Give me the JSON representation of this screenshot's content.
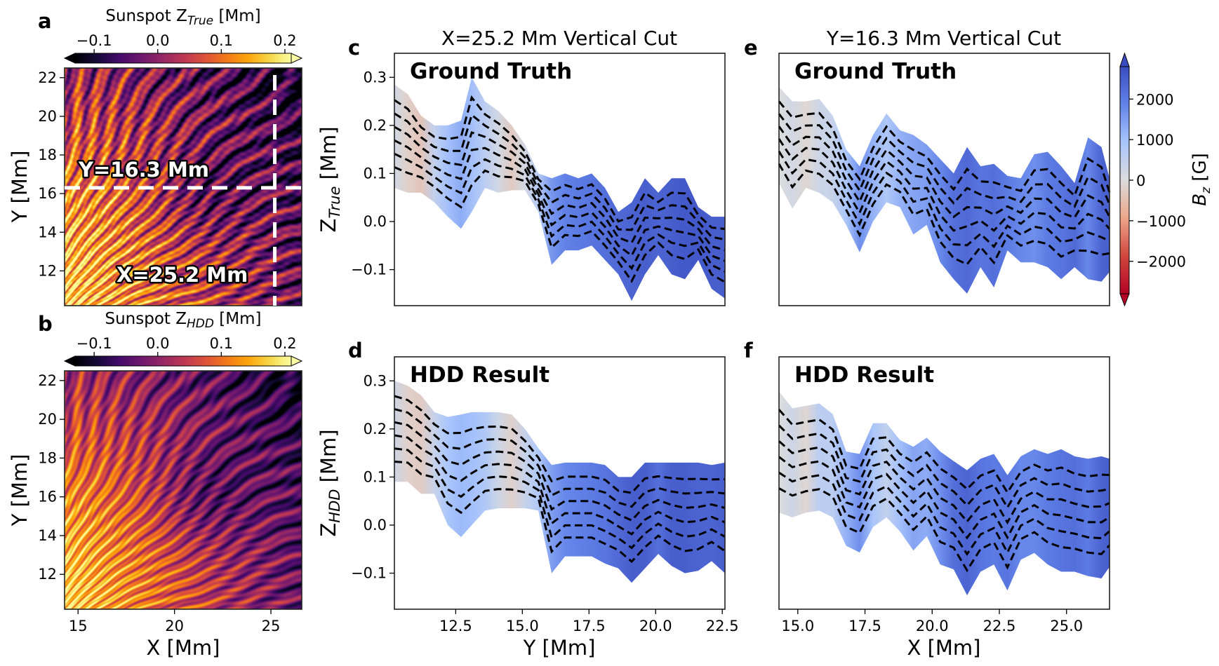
{
  "colors": {
    "dashed_cut": "#ffffff",
    "dashed_lines": "#000000",
    "frame": "#222222"
  },
  "chart_data": [
    {
      "panel": "a",
      "type": "heatmap",
      "colorbar": {
        "label_prefix": "Sunspot Z",
        "label_sub": "True",
        "label_suffix": " [Mm]",
        "colormap": "inferno",
        "range": [
          -0.13,
          0.21
        ],
        "ticks": [
          "−0.1",
          "0.0",
          "0.1",
          "0.2"
        ],
        "tick_values": [
          -0.1,
          0.0,
          0.1,
          0.2
        ],
        "extend": "both"
      },
      "xlim": [
        14.3,
        26.6
      ],
      "ylim": [
        10.2,
        22.5
      ],
      "ylabel": "Y [Mm]",
      "yticks": [
        "12",
        "14",
        "16",
        "18",
        "20",
        "22"
      ],
      "ytick_values": [
        12,
        14,
        16,
        18,
        20,
        22
      ],
      "annotations": [
        {
          "text": "Y=16.3 Mm",
          "cut": "horizontal",
          "value": 16.3
        },
        {
          "text": "X=25.2 Mm",
          "cut": "vertical",
          "value": 25.2
        }
      ]
    },
    {
      "panel": "b",
      "type": "heatmap",
      "colorbar": {
        "label_prefix": "Sunspot Z",
        "label_sub": "HDD",
        "label_suffix": " [Mm]",
        "colormap": "inferno",
        "range": [
          -0.13,
          0.21
        ],
        "ticks": [
          "−0.1",
          "0.0",
          "0.1",
          "0.2"
        ],
        "tick_values": [
          -0.1,
          0.0,
          0.1,
          0.2
        ],
        "extend": "both"
      },
      "xlim": [
        14.3,
        26.6
      ],
      "ylim": [
        10.2,
        22.5
      ],
      "xlabel": "X [Mm]",
      "ylabel": "Y [Mm]",
      "xticks": [
        "15",
        "20",
        "25"
      ],
      "xtick_values": [
        15,
        20,
        25
      ],
      "yticks": [
        "12",
        "14",
        "16",
        "18",
        "20",
        "22"
      ],
      "ytick_values": [
        12,
        14,
        16,
        18,
        20,
        22
      ]
    },
    {
      "panel": "c",
      "type": "area",
      "title": "X=25.2 Mm Vertical Cut",
      "inset": "Ground Truth",
      "ylabel_prefix": "Z",
      "ylabel_sub": "True",
      "ylabel_suffix": " [Mm]",
      "xlim": [
        10.2,
        22.6
      ],
      "ylim": [
        -0.175,
        0.35
      ],
      "yticks": [
        "−0.1",
        "0.0",
        "0.1",
        "0.2",
        "0.3"
      ],
      "ytick_values": [
        -0.1,
        0.0,
        0.1,
        0.2,
        0.3
      ],
      "x": [
        10.2,
        10.7,
        11.2,
        11.7,
        12.2,
        12.7,
        13.1,
        13.6,
        14.1,
        14.6,
        15.1,
        15.6,
        16.1,
        16.6,
        17.1,
        17.6,
        18.1,
        18.6,
        19.1,
        19.6,
        20.1,
        20.6,
        21.1,
        21.6,
        22.1,
        22.6
      ],
      "upper": [
        0.285,
        0.265,
        0.22,
        0.2,
        0.2,
        0.21,
        0.3,
        0.25,
        0.23,
        0.2,
        0.16,
        0.1,
        0.09,
        0.1,
        0.09,
        0.1,
        0.07,
        0.02,
        0.04,
        0.09,
        0.06,
        0.09,
        0.09,
        0.03,
        0.01,
        0.01
      ],
      "lower": [
        0.07,
        0.06,
        0.06,
        0.04,
        0.01,
        -0.015,
        0.02,
        0.07,
        0.06,
        0.065,
        0.065,
        0.02,
        -0.09,
        -0.06,
        -0.06,
        -0.05,
        -0.08,
        -0.11,
        -0.165,
        -0.11,
        -0.07,
        -0.11,
        -0.12,
        -0.08,
        -0.14,
        -0.16
      ],
      "bz": [
        200,
        -200,
        -400,
        500,
        1000,
        1300,
        1000,
        600,
        200,
        -300,
        200,
        700,
        1600,
        1900,
        2000,
        2100,
        2200,
        2300,
        2400,
        2500,
        2400,
        2500,
        2600,
        2600,
        2500,
        2500
      ]
    },
    {
      "panel": "d",
      "type": "area",
      "inset": "HDD Result",
      "ylabel_prefix": "Z",
      "ylabel_sub": "HDD",
      "ylabel_suffix": " [Mm]",
      "xlabel": "Y [Mm]",
      "xlim": [
        10.2,
        22.6
      ],
      "ylim": [
        -0.175,
        0.35
      ],
      "xticks": [
        "12.5",
        "15.0",
        "17.5",
        "20.0",
        "22.5"
      ],
      "xtick_values": [
        12.5,
        15.0,
        17.5,
        20.0,
        22.5
      ],
      "yticks": [
        "−0.1",
        "0.0",
        "0.1",
        "0.2",
        "0.3"
      ],
      "ytick_values": [
        -0.1,
        0.0,
        0.1,
        0.2,
        0.3
      ],
      "x": [
        10.2,
        10.7,
        11.2,
        11.7,
        12.2,
        12.7,
        13.1,
        13.6,
        14.1,
        14.6,
        15.1,
        15.6,
        16.1,
        16.6,
        17.1,
        17.6,
        18.1,
        18.6,
        19.1,
        19.6,
        20.1,
        20.6,
        21.1,
        21.6,
        22.1,
        22.6
      ],
      "upper": [
        0.3,
        0.29,
        0.27,
        0.235,
        0.225,
        0.23,
        0.235,
        0.235,
        0.235,
        0.23,
        0.2,
        0.16,
        0.125,
        0.13,
        0.13,
        0.13,
        0.125,
        0.1,
        0.1,
        0.13,
        0.13,
        0.13,
        0.13,
        0.13,
        0.125,
        0.13
      ],
      "lower": [
        0.09,
        0.09,
        0.065,
        0.065,
        0.0,
        -0.025,
        0.0,
        0.03,
        0.035,
        0.035,
        0.035,
        0.03,
        -0.1,
        -0.065,
        -0.065,
        -0.065,
        -0.08,
        -0.09,
        -0.12,
        -0.09,
        -0.06,
        -0.085,
        -0.1,
        -0.095,
        -0.075,
        -0.1
      ],
      "bz": [
        300,
        -200,
        -300,
        400,
        900,
        1100,
        1000,
        800,
        300,
        -200,
        400,
        800,
        1500,
        1800,
        1900,
        2000,
        2100,
        2300,
        2500,
        2500,
        2200,
        2500,
        2500,
        2400,
        2400,
        2500
      ]
    },
    {
      "panel": "e",
      "type": "area",
      "title": "Y=16.3 Mm Vertical Cut",
      "inset": "Ground Truth",
      "xlim": [
        14.3,
        26.6
      ],
      "ylim": [
        -0.175,
        0.35
      ],
      "x": [
        14.3,
        14.8,
        15.3,
        15.8,
        16.3,
        16.8,
        17.3,
        17.8,
        18.3,
        18.8,
        19.3,
        19.8,
        20.3,
        20.8,
        21.3,
        21.8,
        22.3,
        22.8,
        23.3,
        23.8,
        24.3,
        24.8,
        25.3,
        25.8,
        26.3,
        26.6
      ],
      "upper": [
        0.28,
        0.25,
        0.25,
        0.255,
        0.22,
        0.15,
        0.115,
        0.18,
        0.225,
        0.19,
        0.18,
        0.16,
        0.13,
        0.1,
        0.155,
        0.115,
        0.12,
        0.095,
        0.09,
        0.14,
        0.145,
        0.115,
        0.08,
        0.175,
        0.155,
        0.09
      ],
      "lower": [
        0.08,
        0.027,
        0.07,
        0.06,
        0.04,
        -0.007,
        -0.064,
        0.0,
        0.04,
        0.03,
        -0.027,
        -0.007,
        -0.085,
        -0.12,
        -0.15,
        -0.095,
        -0.137,
        -0.06,
        -0.085,
        -0.085,
        -0.095,
        -0.12,
        -0.095,
        -0.12,
        -0.125,
        -0.105
      ],
      "bz": [
        0,
        200,
        -100,
        300,
        400,
        900,
        1700,
        1200,
        800,
        1200,
        1400,
        1500,
        1800,
        2200,
        2300,
        2100,
        2200,
        2000,
        1800,
        1700,
        2000,
        2100,
        2300,
        1800,
        2400,
        2500
      ]
    },
    {
      "panel": "f",
      "type": "area",
      "inset": "HDD Result",
      "xlabel": "X [Mm]",
      "xlim": [
        14.3,
        26.6
      ],
      "ylim": [
        -0.175,
        0.35
      ],
      "xticks": [
        "15.0",
        "17.5",
        "20.0",
        "22.5",
        "25.0"
      ],
      "xtick_values": [
        15.0,
        17.5,
        20.0,
        22.5,
        25.0
      ],
      "x": [
        14.3,
        14.8,
        15.3,
        15.8,
        16.3,
        16.8,
        17.3,
        17.8,
        18.3,
        18.8,
        19.3,
        19.8,
        20.3,
        20.8,
        21.3,
        21.8,
        22.3,
        22.8,
        23.3,
        23.8,
        24.3,
        24.8,
        25.3,
        25.8,
        26.3,
        26.6
      ],
      "upper": [
        0.278,
        0.243,
        0.248,
        0.253,
        0.231,
        0.153,
        0.148,
        0.212,
        0.212,
        0.177,
        0.163,
        0.182,
        0.153,
        0.133,
        0.114,
        0.138,
        0.148,
        0.104,
        0.143,
        0.158,
        0.148,
        0.158,
        0.143,
        0.138,
        0.143,
        0.138
      ],
      "lower": [
        0.026,
        0.016,
        0.026,
        0.03,
        0.016,
        -0.043,
        -0.057,
        -0.004,
        0.016,
        -0.013,
        -0.053,
        -0.023,
        -0.082,
        -0.092,
        -0.146,
        -0.097,
        -0.082,
        -0.136,
        -0.072,
        -0.058,
        -0.082,
        -0.097,
        -0.097,
        -0.106,
        -0.111,
        -0.087
      ],
      "bz": [
        0,
        300,
        -100,
        600,
        600,
        1200,
        1700,
        900,
        500,
        1000,
        1400,
        1300,
        1700,
        2200,
        2400,
        2100,
        2000,
        2100,
        1800,
        1800,
        2000,
        2100,
        2200,
        2000,
        2400,
        2500
      ]
    }
  ],
  "bz_colorbar": {
    "label_prefix": "B",
    "label_sub": "z",
    "label_suffix": " [G]",
    "colormap": "coolwarm",
    "range": [
      -2800,
      2800
    ],
    "extend": "both",
    "ticks": [
      "−2000",
      "−1000",
      "0",
      "1000",
      "2000"
    ],
    "tick_values": [
      -2000,
      -1000,
      0,
      1000,
      2000
    ]
  },
  "panel_letters": [
    "a",
    "b",
    "c",
    "d",
    "e",
    "f"
  ]
}
